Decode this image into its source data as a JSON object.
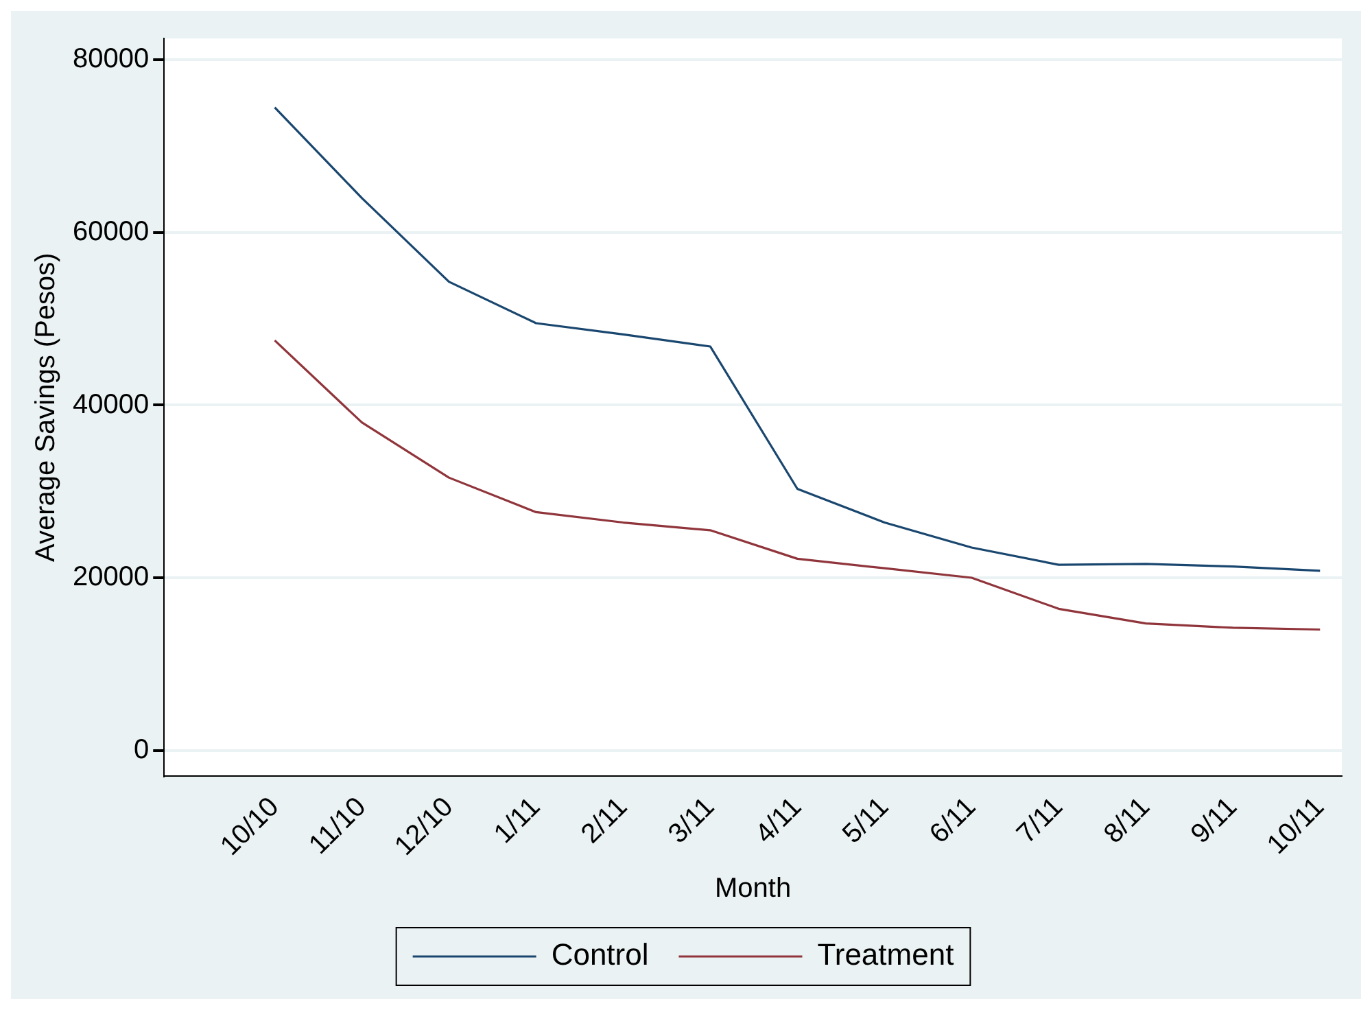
{
  "chart_data": {
    "type": "line",
    "xlabel": "Month",
    "ylabel": "Average Savings (Pesos)",
    "categories": [
      "10/10",
      "11/10",
      "12/10",
      "1/11",
      "2/11",
      "3/11",
      "4/11",
      "5/11",
      "6/11",
      "7/11",
      "8/11",
      "9/11",
      "10/11"
    ],
    "series": [
      {
        "name": "Control",
        "color": "#1a476f",
        "values": [
          74500,
          64000,
          54300,
          49500,
          48200,
          46800,
          30300,
          26400,
          23500,
          21500,
          21600,
          21300,
          20800
        ]
      },
      {
        "name": "Treatment",
        "color": "#90353b",
        "values": [
          47500,
          38000,
          31600,
          27600,
          26400,
          25500,
          22200,
          21100,
          20000,
          16400,
          14700,
          14200,
          14000
        ]
      }
    ],
    "ylim": [
      -3000,
      82500
    ],
    "yticks": [
      0,
      20000,
      40000,
      60000,
      80000
    ],
    "grid": "y",
    "legend": "bottom",
    "marker": "none",
    "line_style": "solid"
  }
}
